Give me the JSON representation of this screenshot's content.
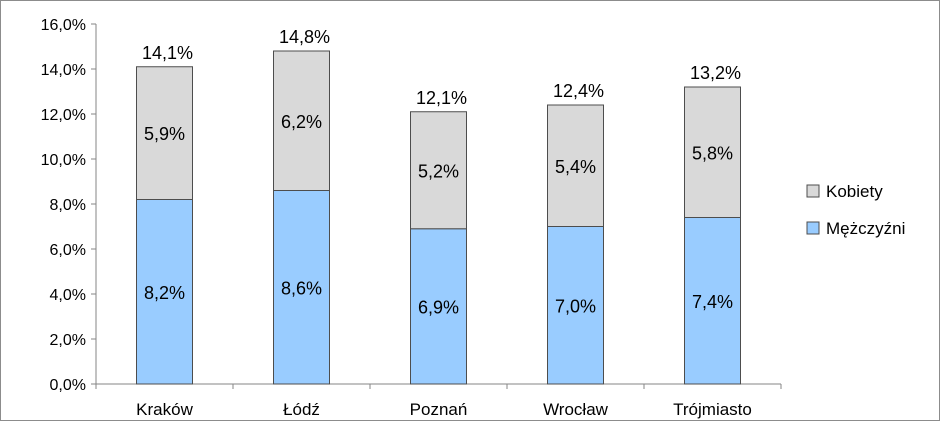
{
  "chart_data": {
    "type": "bar",
    "stacked": true,
    "categories": [
      "Kraków",
      "Łódź",
      "Poznań",
      "Wrocław",
      "Trójmiasto"
    ],
    "series": [
      {
        "name": "Mężczyźni",
        "values": [
          8.2,
          8.6,
          6.9,
          7.0,
          7.4
        ],
        "labels": [
          "8,2%",
          "8,6%",
          "6,9%",
          "7,0%",
          "7,4%"
        ],
        "color": "#99CCFF"
      },
      {
        "name": "Kobiety",
        "values": [
          5.9,
          6.2,
          5.2,
          5.4,
          5.8
        ],
        "labels": [
          "5,9%",
          "6,2%",
          "5,2%",
          "5,4%",
          "5,8%"
        ],
        "color": "#D9D9D9"
      }
    ],
    "totals": [
      14.1,
      14.8,
      12.1,
      12.4,
      13.2
    ],
    "total_labels": [
      "14,1%",
      "14,8%",
      "12,1%",
      "12,4%",
      "13,2%"
    ],
    "ylim": [
      0,
      16
    ],
    "yticks": [
      0,
      2,
      4,
      6,
      8,
      10,
      12,
      14,
      16
    ],
    "ytick_labels": [
      "0,0%",
      "2,0%",
      "4,0%",
      "6,0%",
      "8,0%",
      "10,0%",
      "12,0%",
      "14,0%",
      "16,0%"
    ],
    "grid": false,
    "legend_position": "right",
    "title": "",
    "xlabel": "",
    "ylabel": ""
  }
}
